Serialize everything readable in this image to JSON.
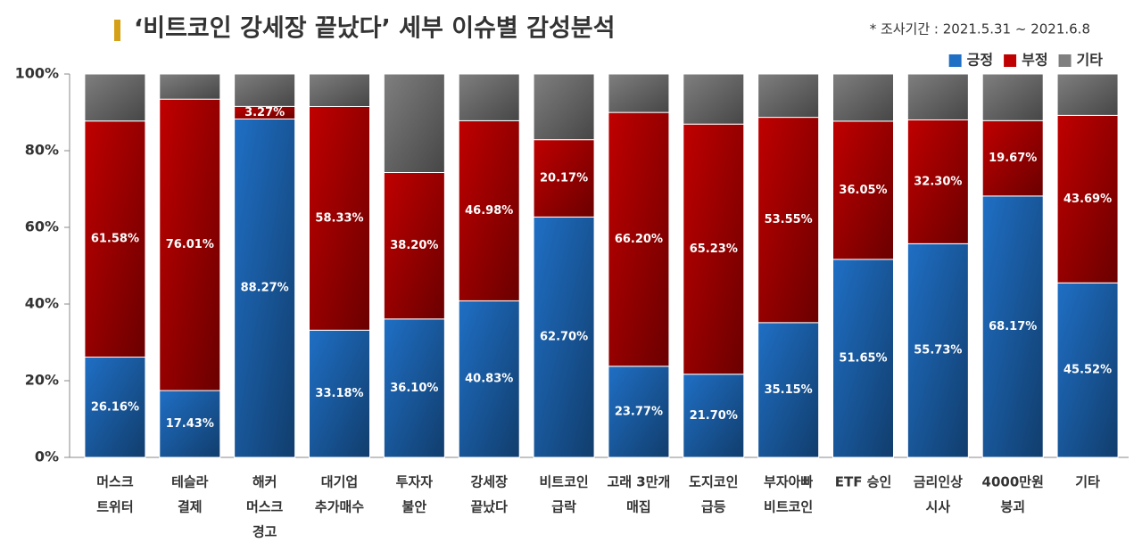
{
  "chart_data": {
    "type": "stacked-bar",
    "title": "‘비트코인 강세장 끝났다’ 세부 이슈별 감성분석",
    "note": "* 조사기간 : 2021.5.31 ~ 2021.6.8",
    "categories": [
      [
        "머스크",
        "트위터"
      ],
      [
        "테슬라",
        "결제"
      ],
      [
        "해커",
        "머스크",
        "경고"
      ],
      [
        "대기업",
        "추가매수"
      ],
      [
        "투자자",
        "불안"
      ],
      [
        "강세장",
        "끝났다"
      ],
      [
        "비트코인",
        "급락"
      ],
      [
        "고래 3만개",
        "매집"
      ],
      [
        "도지코인",
        "급등"
      ],
      [
        "부자아빠",
        "비트코인"
      ],
      [
        "ETF 승인"
      ],
      [
        "금리인상",
        "시사"
      ],
      [
        "4000만원",
        "붕괴"
      ],
      [
        "기타"
      ]
    ],
    "series": [
      {
        "name": "긍정",
        "color": "#1f6fc5",
        "values": [
          26.16,
          17.43,
          88.27,
          33.18,
          36.1,
          40.83,
          62.7,
          23.77,
          21.7,
          35.15,
          51.65,
          55.73,
          68.17,
          45.52
        ],
        "value_labels": [
          "26.16%",
          "17.43%",
          "88.27%",
          "33.18%",
          "36.10%",
          "40.83%",
          "62.70%",
          "23.77%",
          "21.70%",
          "35.15%",
          "51.65%",
          "55.73%",
          "68.17%",
          "45.52%"
        ]
      },
      {
        "name": "부정",
        "color": "#c00000",
        "values": [
          61.58,
          76.01,
          3.27,
          58.33,
          38.2,
          46.98,
          20.17,
          66.2,
          65.23,
          53.55,
          36.05,
          32.3,
          19.67,
          43.69
        ],
        "value_labels": [
          "61.58%",
          "76.01%",
          "3.27%",
          "58.33%",
          "38.20%",
          "46.98%",
          "20.17%",
          "66.20%",
          "65.23%",
          "53.55%",
          "36.05%",
          "32.30%",
          "19.67%",
          "43.69%"
        ]
      },
      {
        "name": "기타",
        "color": "#7f7f7f",
        "values": [
          12.26,
          6.56,
          8.46,
          8.49,
          25.7,
          12.19,
          17.13,
          10.03,
          13.07,
          11.3,
          12.3,
          11.97,
          12.16,
          10.79
        ]
      }
    ],
    "ylim": [
      0,
      100
    ],
    "yticks": [
      {
        "value": 0,
        "label": "0%"
      },
      {
        "value": 20,
        "label": "20%"
      },
      {
        "value": 40,
        "label": "40%"
      },
      {
        "value": 60,
        "label": "60%"
      },
      {
        "value": 80,
        "label": "80%"
      },
      {
        "value": 100,
        "label": "100%"
      }
    ],
    "legend": "top-right"
  }
}
